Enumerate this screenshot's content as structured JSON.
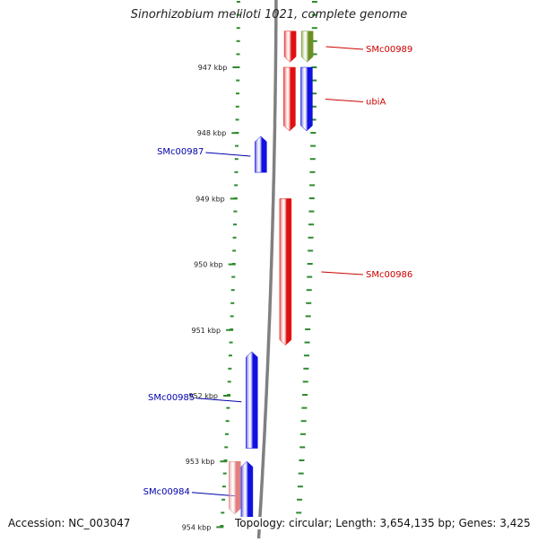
{
  "title": "Sinorhizobium meliloti 1021, complete genome",
  "accession": "Accession: NC_003047",
  "topology": "Topology: circular; Length: 3,654,135 bp; Genes: 3,425",
  "ticks": [
    {
      "label": "947 kbp",
      "kbp": 947
    },
    {
      "label": "948 kbp",
      "kbp": 948
    },
    {
      "label": "949 kbp",
      "kbp": 949
    },
    {
      "label": "950 kbp",
      "kbp": 950
    },
    {
      "label": "951 kbp",
      "kbp": 951
    },
    {
      "label": "952 kbp",
      "kbp": 952
    },
    {
      "label": "953 kbp",
      "kbp": 953
    },
    {
      "label": "954 kbp",
      "kbp": 954
    }
  ],
  "genes": [
    {
      "name": "SMc00989",
      "strand": "+",
      "start_kbp": 946.45,
      "end_kbp": 946.92,
      "color": "#e01010",
      "label_side": "right"
    },
    {
      "name": "",
      "strand": "+",
      "start_kbp": 946.45,
      "end_kbp": 946.92,
      "color": "#6b8e23",
      "label_side": "none"
    },
    {
      "name": "ubiA",
      "strand": "+",
      "start_kbp": 947.0,
      "end_kbp": 947.97,
      "color": "#e01010",
      "label_side": "right"
    },
    {
      "name": "",
      "strand": "+",
      "start_kbp": 947.0,
      "end_kbp": 947.97,
      "color": "#1010e0",
      "label_side": "none"
    },
    {
      "name": "SMc00987",
      "strand": "-",
      "start_kbp": 948.05,
      "end_kbp": 948.6,
      "color": "#1010e0",
      "label_side": "left"
    },
    {
      "name": "SMc00986",
      "strand": "+",
      "start_kbp": 949.0,
      "end_kbp": 951.23,
      "color": "#e01010",
      "label_side": "right"
    },
    {
      "name": "SMc00985",
      "strand": "-",
      "start_kbp": 951.33,
      "end_kbp": 952.8,
      "color": "#1010e0",
      "label_side": "left"
    },
    {
      "name": "SMc00984",
      "strand": "-",
      "start_kbp": 953.0,
      "end_kbp": 954.0,
      "color": "#1010e0",
      "label_side": "left"
    },
    {
      "name": "",
      "strand": "+",
      "start_kbp": 953.0,
      "end_kbp": 953.8,
      "color": "#e08080",
      "label_side": "none"
    }
  ],
  "colors": {
    "forward_gene": "#e01010",
    "reverse_gene": "#1010e0",
    "gene_label_forward": "#cc0000",
    "gene_label_reverse": "#0000aa",
    "backbone": "#808080",
    "ruler": "#2e8b2e"
  }
}
